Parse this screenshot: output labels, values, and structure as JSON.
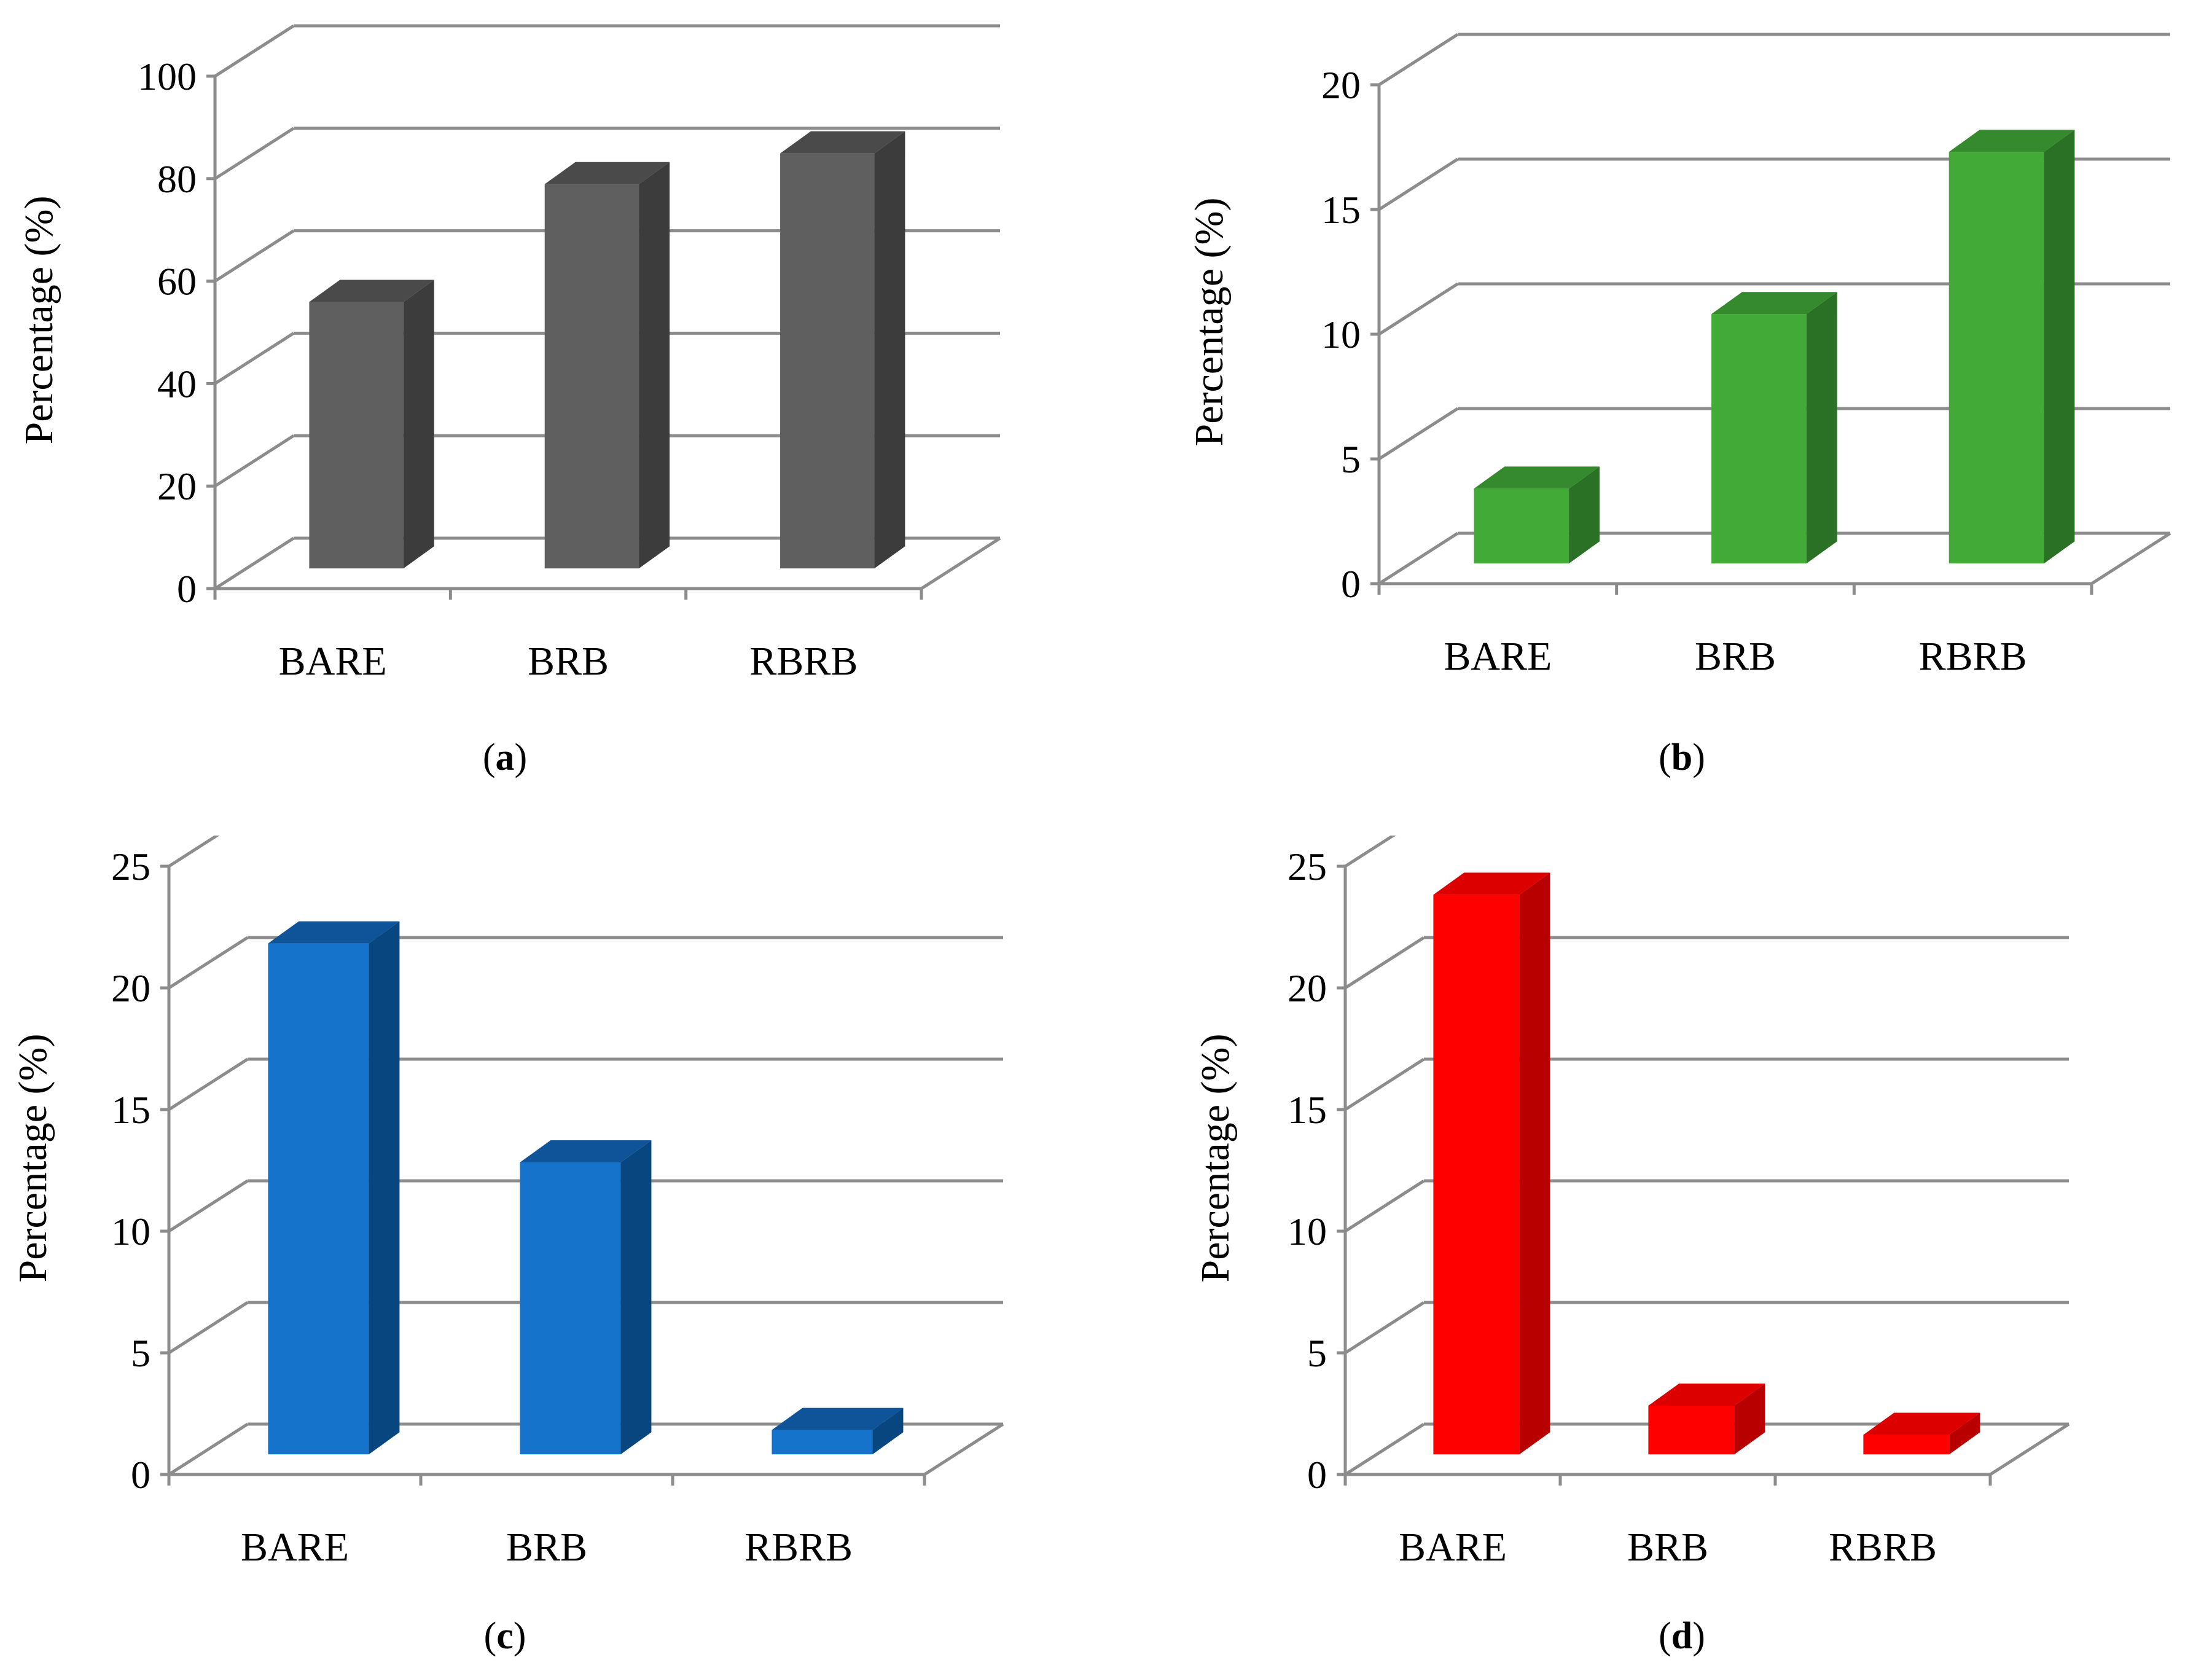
{
  "chart_data": [
    {
      "panel_label": "a",
      "type": "bar",
      "style": "3d",
      "categories": [
        "BARE",
        "BRB",
        "RBRB"
      ],
      "values": [
        52,
        75,
        81
      ],
      "ylabel": "Percentage (%)",
      "ylim": [
        0,
        100
      ],
      "yticks": [
        "0",
        "20",
        "40",
        "60",
        "80",
        "100"
      ],
      "grid": true,
      "colors": {
        "front": "#5f5f5f",
        "top": "#4a4a4a",
        "side": "#3c3c3c"
      }
    },
    {
      "panel_label": "b",
      "type": "bar",
      "style": "3d",
      "categories": [
        "BARE",
        "BRB",
        "RBRB"
      ],
      "values": [
        3,
        10,
        16.5
      ],
      "ylabel": "Percentage (%)",
      "ylim": [
        0,
        20
      ],
      "yticks": [
        "0",
        "5",
        "10",
        "15",
        "20"
      ],
      "grid": true,
      "colors": {
        "front": "#42ab38",
        "top": "#348a2c",
        "side": "#2b7125"
      }
    },
    {
      "panel_label": "c",
      "type": "bar",
      "style": "3d",
      "categories": [
        "BARE",
        "BRB",
        "RBRB"
      ],
      "values": [
        21,
        12,
        1
      ],
      "ylabel": "Percentage (%)",
      "ylim": [
        0,
        25
      ],
      "yticks": [
        "0",
        "5",
        "10",
        "15",
        "20",
        "25"
      ],
      "grid": true,
      "colors": {
        "front": "#1673cc",
        "top": "#0f5499",
        "side": "#084680"
      }
    },
    {
      "panel_label": "d",
      "type": "bar",
      "style": "3d",
      "categories": [
        "BARE",
        "BRB",
        "RBRB"
      ],
      "values": [
        23,
        2,
        0.8
      ],
      "ylabel": "Percentage (%)",
      "ylim": [
        0,
        25
      ],
      "yticks": [
        "0",
        "5",
        "10",
        "15",
        "20",
        "25"
      ],
      "grid": true,
      "colors": {
        "front": "#ff0000",
        "top": "#dd0000",
        "side": "#b80000"
      }
    }
  ]
}
